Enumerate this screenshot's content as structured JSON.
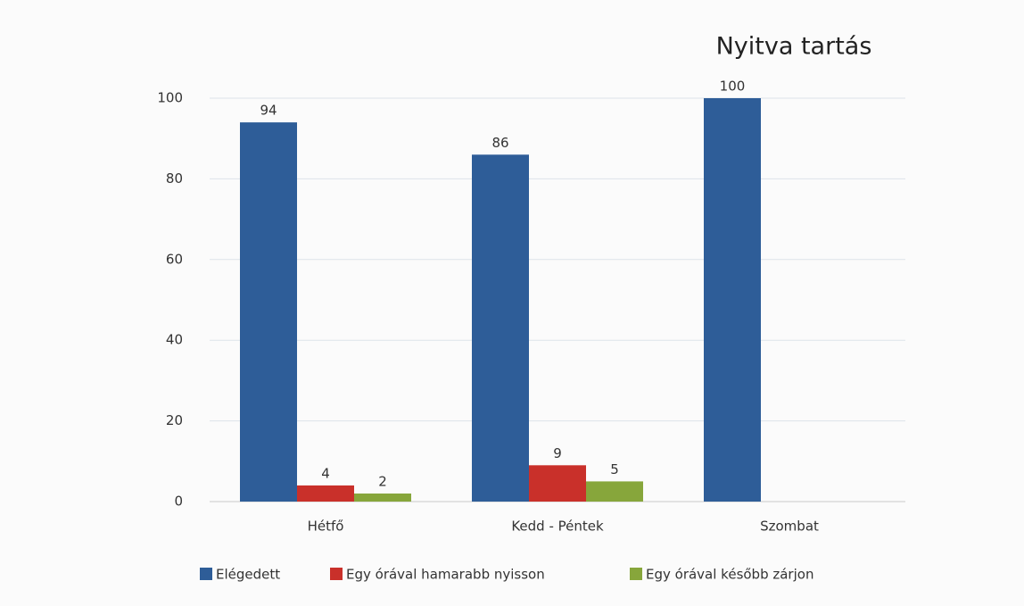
{
  "chart_data": {
    "type": "bar",
    "title": "Nyitva tartás",
    "categories": [
      "Hétfő",
      "Kedd - Péntek",
      "Szombat"
    ],
    "series": [
      {
        "name": "Elégedett",
        "color": "#2e5d98",
        "values": [
          94,
          86,
          100
        ]
      },
      {
        "name": "Egy órával hamarabb nyisson",
        "color": "#c9302a",
        "values": [
          4,
          9,
          null
        ]
      },
      {
        "name": "Egy órával később zárjon",
        "color": "#87a63b",
        "values": [
          2,
          5,
          null
        ]
      }
    ],
    "ylim": [
      0,
      100
    ],
    "yticks": [
      0,
      20,
      40,
      60,
      80,
      100
    ],
    "grid": true,
    "legend": "bottom"
  }
}
